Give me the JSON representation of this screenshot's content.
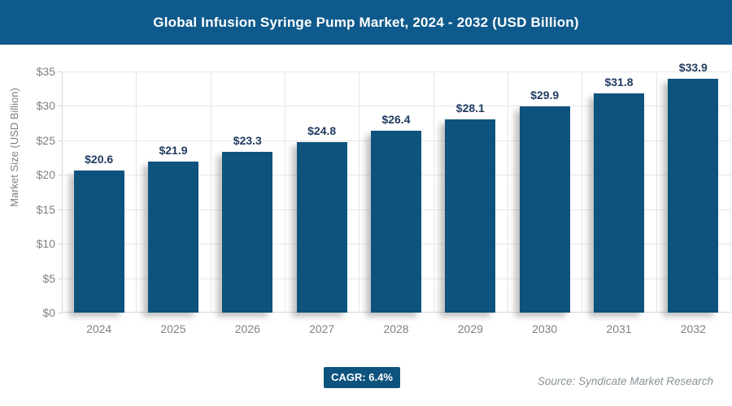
{
  "header": {
    "title": "Global Infusion Syringe Pump Market, 2024 - 2032 (USD Billion)"
  },
  "chart_data": {
    "type": "bar",
    "title": "Global Infusion Syringe Pump Market, 2024 - 2032 (USD Billion)",
    "categories": [
      "2024",
      "2025",
      "2026",
      "2027",
      "2028",
      "2029",
      "2030",
      "2031",
      "2032"
    ],
    "values": [
      20.6,
      21.9,
      23.3,
      24.8,
      26.4,
      28.1,
      29.9,
      31.8,
      33.9
    ],
    "bar_labels": [
      "$20.6",
      "$21.9",
      "$23.3",
      "$24.8",
      "$26.4",
      "$28.1",
      "$29.9",
      "$31.8",
      "$33.9"
    ],
    "xlabel": "",
    "ylabel": "Market Size (USD Billion)",
    "ylim": [
      0,
      35
    ],
    "ytick_step": 5,
    "ytick_labels": [
      "$0",
      "$5",
      "$10",
      "$15",
      "$20",
      "$25",
      "$30",
      "$35"
    ],
    "grid": true,
    "legend": "none"
  },
  "footer": {
    "cagr_label": "CAGR: 6.4%",
    "source": "Source: Syndicate Market Research"
  },
  "colors": {
    "header_bg": "#0F5A8C",
    "bar_fill": "#0E537D",
    "value_label": "#1F3A5F",
    "axis_text": "#808080",
    "gridline": "#E7E7E7",
    "axis_line": "#D6D6D6",
    "badge_bg": "#0E537D",
    "source_text": "#8A9397"
  }
}
